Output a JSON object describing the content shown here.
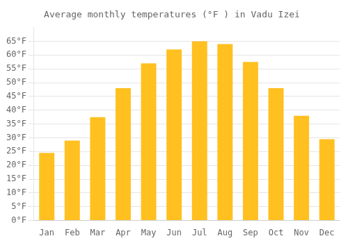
{
  "chart_data": {
    "type": "bar",
    "title": "Average monthly temperatures (°F ) in Vadu Izei",
    "categories": [
      "Jan",
      "Feb",
      "Mar",
      "Apr",
      "May",
      "Jun",
      "Jul",
      "Aug",
      "Sep",
      "Oct",
      "Nov",
      "Dec"
    ],
    "values": [
      24.5,
      29.0,
      37.5,
      48.0,
      57.0,
      62.0,
      65.0,
      64.0,
      57.5,
      48.0,
      38.0,
      29.5
    ],
    "color": "#FFC020",
    "ylim": [
      0,
      70
    ],
    "yticks": [
      {
        "value": 0,
        "label": "0°F"
      },
      {
        "value": 5,
        "label": "5°F"
      },
      {
        "value": 10,
        "label": "10°F"
      },
      {
        "value": 15,
        "label": "15°F"
      },
      {
        "value": 20,
        "label": "20°F"
      },
      {
        "value": 25,
        "label": "25°F"
      },
      {
        "value": 30,
        "label": "30°F"
      },
      {
        "value": 35,
        "label": "35°F"
      },
      {
        "value": 40,
        "label": "40°F"
      },
      {
        "value": 45,
        "label": "45°F"
      },
      {
        "value": 50,
        "label": "50°F"
      },
      {
        "value": 55,
        "label": "55°F"
      },
      {
        "value": 60,
        "label": "60°F"
      },
      {
        "value": 65,
        "label": "65°F"
      }
    ],
    "grid": true
  }
}
